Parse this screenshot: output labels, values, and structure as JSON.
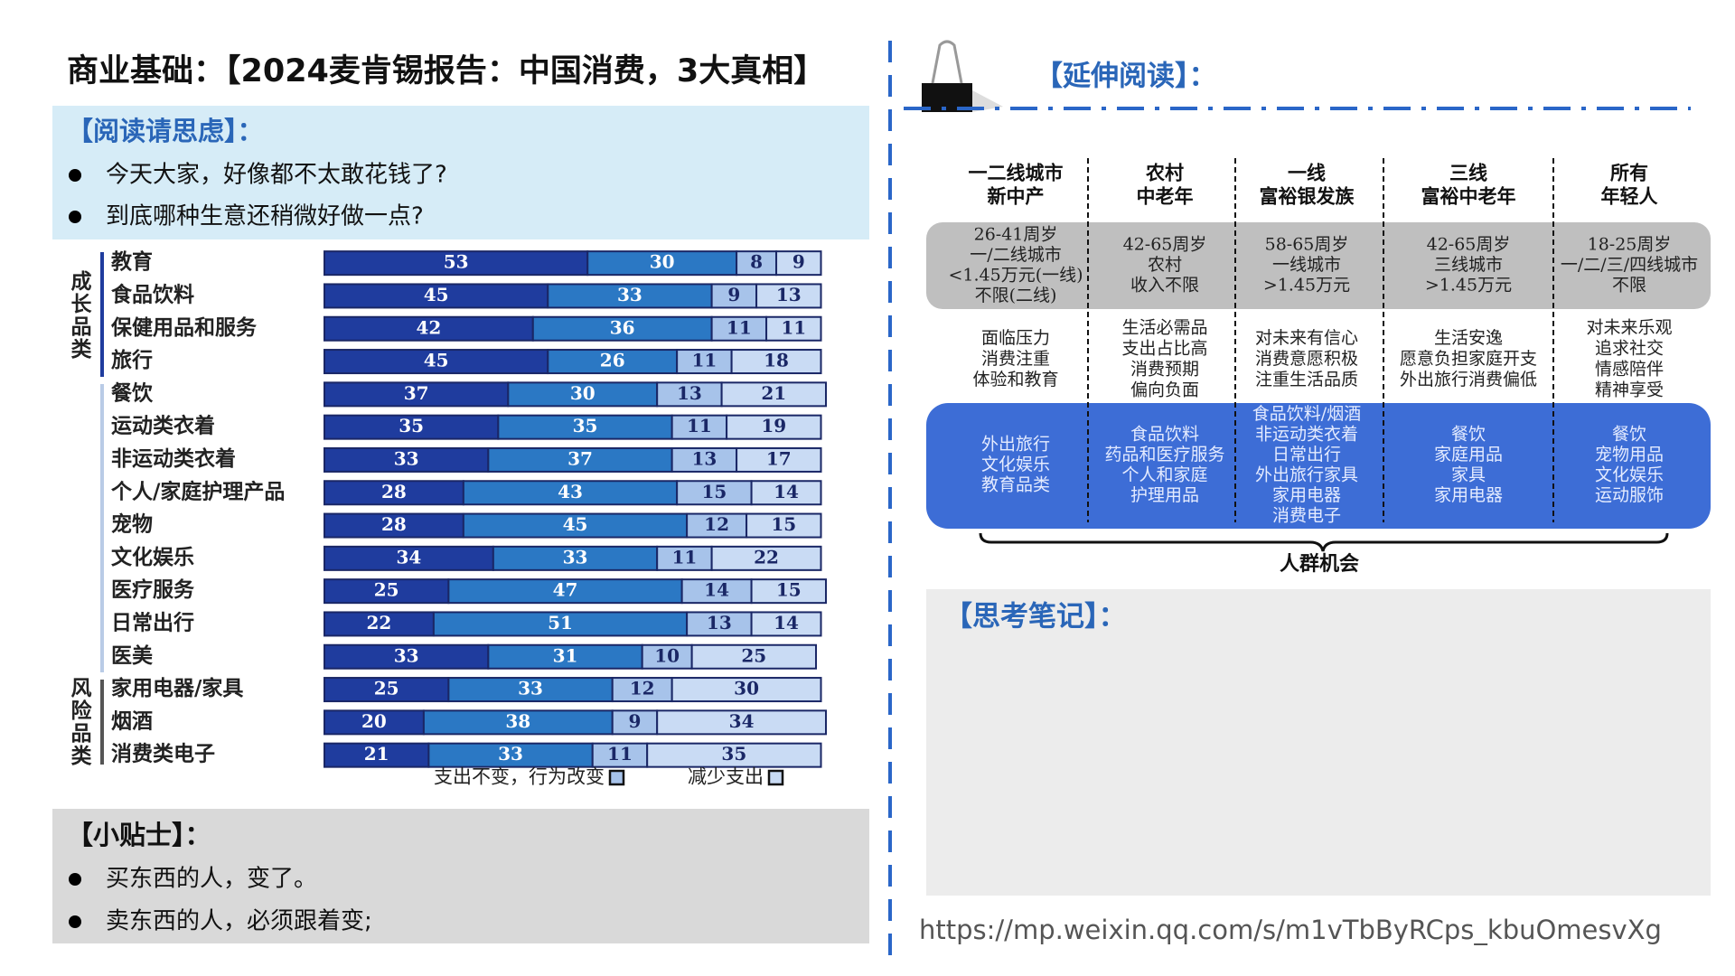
{
  "header": {
    "title": "商业基础：【2024麦肯锡报告：中国消费，3大真相】"
  },
  "reading": {
    "title": "【阅读请思虑】：",
    "items": [
      "今天大家，好像都不太敢花钱了?",
      "到底哪种生意还稍微好做一点?"
    ]
  },
  "chart_data": {
    "type": "stacked-bar-horizontal",
    "categories": [
      "教育",
      "食品饮料",
      "保健用品和服务",
      "旅行",
      "餐饮",
      "运动类衣着",
      "非运动类衣着",
      "个人/家庭护理产品",
      "宠物",
      "文化娱乐",
      "医疗服务",
      "日常出行",
      "医美",
      "家用电器/家具",
      "烟酒",
      "消费类电子"
    ],
    "series": [
      {
        "color": "#1f3c9e",
        "values": [
          53,
          45,
          42,
          45,
          37,
          35,
          33,
          28,
          28,
          34,
          25,
          22,
          33,
          25,
          20,
          21
        ]
      },
      {
        "color": "#2b78c4",
        "values": [
          30,
          33,
          36,
          26,
          30,
          35,
          37,
          43,
          45,
          33,
          47,
          51,
          31,
          33,
          38,
          33
        ]
      },
      {
        "name": "支出不变，行为改变",
        "color": "#a7c3ea",
        "values": [
          8,
          9,
          11,
          11,
          13,
          11,
          13,
          15,
          12,
          11,
          14,
          13,
          10,
          12,
          9,
          11
        ]
      },
      {
        "name": "减少支出",
        "color": "#c9dbf4",
        "values": [
          9,
          13,
          11,
          18,
          21,
          19,
          17,
          14,
          15,
          22,
          15,
          14,
          25,
          30,
          34,
          35
        ]
      }
    ],
    "xlim": [
      0,
      101
    ],
    "group_labels": [
      "成长品类",
      "风险品类"
    ]
  },
  "tips": {
    "title": "【小贴士】：",
    "items": [
      "买东西的人，变了。",
      "卖东西的人，必须跟着变;"
    ]
  },
  "extended": {
    "title": "【延伸阅读】：",
    "columns": [
      {
        "header": [
          "一二线城市",
          "新中产"
        ],
        "profile": [
          "26-41周岁",
          "一/二线城市",
          "<1.45万元(一线)",
          "不限(二线)"
        ],
        "attitude": [
          "面临压力",
          "消费注重",
          "体验和教育"
        ],
        "opportunities": [
          "外出旅行",
          "文化娱乐",
          "教育品类"
        ]
      },
      {
        "header": [
          "农村",
          "中老年"
        ],
        "profile": [
          "42-65周岁",
          "农村",
          "收入不限"
        ],
        "attitude": [
          "生活必需品",
          "支出占比高",
          "消费预期",
          "偏向负面"
        ],
        "opportunities": [
          "食品饮料",
          "药品和医疗服务",
          "个人和家庭",
          "护理用品"
        ]
      },
      {
        "header": [
          "一线",
          "富裕银发族"
        ],
        "profile": [
          "58-65周岁",
          "一线城市",
          ">1.45万元"
        ],
        "attitude": [
          "对未来有信心",
          "消费意愿积极",
          "注重生活品质"
        ],
        "opportunities": [
          "食品饮料/烟酒",
          "非运动类衣着",
          "日常出行",
          "外出旅行家具",
          "家用电器",
          "消费电子"
        ]
      },
      {
        "header": [
          "三线",
          "富裕中老年"
        ],
        "profile": [
          "42-65周岁",
          "三线城市",
          ">1.45万元"
        ],
        "attitude": [
          "生活安逸",
          "愿意负担家庭开支",
          "外出旅行消费偏低"
        ],
        "opportunities": [
          "餐饮",
          "家庭用品",
          "家具",
          "家用电器"
        ]
      },
      {
        "header": [
          "所有",
          "年轻人"
        ],
        "profile": [
          "18-25周岁",
          "一/二/三/四线城市",
          "不限"
        ],
        "attitude": [
          "对未来乐观",
          "追求社交",
          "情感陪伴",
          "精神享受"
        ],
        "opportunities": [
          "餐饮",
          "宠物用品",
          "文化娱乐",
          "运动服饰"
        ]
      }
    ],
    "footer": "人群机会"
  },
  "notes": {
    "title": "【思考笔记】："
  },
  "url": "https://mp.weixin.qq.com/s/m1vTbByRCps_kbuOmesvXg"
}
